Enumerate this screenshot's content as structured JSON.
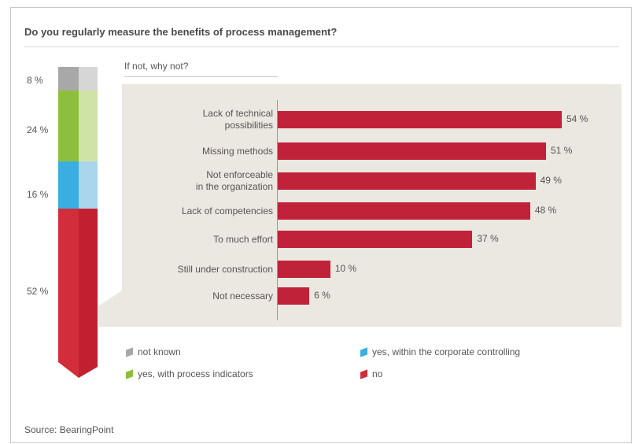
{
  "header": {
    "title": "Do you regularly measure the benefits of process management?",
    "subtitle": "If not, why not?"
  },
  "chart_data": [
    {
      "type": "bar",
      "orientation": "horizontal",
      "title": "If not, why not?",
      "categories": [
        "Lack of technical\npossibilities",
        "Missing methods",
        "Not enforceable\nin the organization",
        "Lack of competencies",
        "To much effort",
        "Still under construction",
        "Not necessary"
      ],
      "values": [
        54,
        51,
        49,
        48,
        37,
        10,
        6
      ],
      "value_labels": [
        "54 %",
        "51 %",
        "49 %",
        "48 %",
        "37 %",
        "10 %",
        "6 %"
      ],
      "xlim": [
        0,
        60
      ],
      "color": "#c0223a"
    },
    {
      "type": "bar",
      "orientation": "stacked-vertical",
      "categories": [
        "not known",
        "yes, with process indicators",
        "yes, within the corporate controlling",
        "no"
      ],
      "values": [
        8,
        24,
        16,
        52
      ],
      "value_labels": [
        "8 %",
        "24 %",
        "16 %",
        "52 %"
      ],
      "colors": [
        "#a8a8a8",
        "#8dbf3c",
        "#3aaee0",
        "#d22d3a"
      ],
      "colors_light": [
        "#d6d6d6",
        "#cfe3a6",
        "#a9d6ec",
        "#d22d3a"
      ]
    }
  ],
  "legend": {
    "items": [
      {
        "label": "not known",
        "color": "#a8a8a8"
      },
      {
        "label": "yes, with process indicators",
        "color": "#8dbf3c"
      },
      {
        "label": "yes, within the corporate controlling",
        "color": "#3aaee0"
      },
      {
        "label": "no",
        "color": "#d22d3a"
      }
    ]
  },
  "footer": {
    "source": "Source: BearingPoint"
  },
  "colors": {
    "panel": "#ebe7e1",
    "bar": "#c0223a"
  }
}
